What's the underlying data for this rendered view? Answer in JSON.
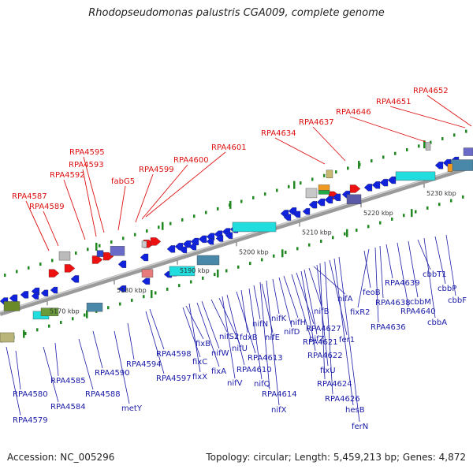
{
  "title": "Rhodopseudomonas palustris CGA009, complete genome",
  "footer": {
    "accession": "Accession: NC_005296",
    "summary": "Topology: circular; Length: 5,459,213 bp; Genes: 4,872"
  },
  "colors": {
    "label_red": "#dd1111",
    "label_blue": "#1a1aa8",
    "forward_gene": "#ee1111",
    "reverse_gene": "#1122dd",
    "nif_operon": "#22dddd",
    "chromosome": "#888888",
    "dot_track": "#228822"
  },
  "kbp_ticks": [
    "5170 kbp",
    "5180 kbp",
    "5190 kbp",
    "5200 kbp",
    "5210 kbp",
    "5220 kbp",
    "5230 kbp"
  ],
  "top_labels": [
    "RPA4587",
    "RPA4589",
    "RPA4592",
    "RPA4593",
    "RPA4595",
    "fabG5",
    "RPA4599",
    "RPA4600",
    "RPA4601",
    "RPA4634",
    "RPA4637",
    "RPA4646",
    "RPA4651",
    "RPA4652"
  ],
  "bottom_labels": [
    "RPA4579",
    "RPA4580",
    "RPA4584",
    "RPA4585",
    "RPA4588",
    "RPA4590",
    "metY",
    "RPA4594",
    "RPA4597",
    "RPA4598",
    "fixC",
    "fixB",
    "fixX",
    "fixA",
    "nifW",
    "nifS2",
    "nifU",
    "nifV",
    "RPA4610",
    "RPA4613",
    "fdxB",
    "nifQ",
    "nifN",
    "nifE",
    "RPA4614",
    "nifX",
    "nifK",
    "nifD",
    "nifH",
    "RPA4621",
    "RPA4627",
    "RPA4622",
    "nifZ",
    "nifB",
    "nifA",
    "fixU",
    "RPA4624",
    "RPA4626",
    "fer1",
    "hesB",
    "ferN",
    "feoB",
    "fixR2",
    "RPA4636",
    "RPA4638",
    "RPA4639",
    "RPA4640",
    "cbbM",
    "cbbT1",
    "cbbA",
    "cbbP",
    "cbbF"
  ]
}
